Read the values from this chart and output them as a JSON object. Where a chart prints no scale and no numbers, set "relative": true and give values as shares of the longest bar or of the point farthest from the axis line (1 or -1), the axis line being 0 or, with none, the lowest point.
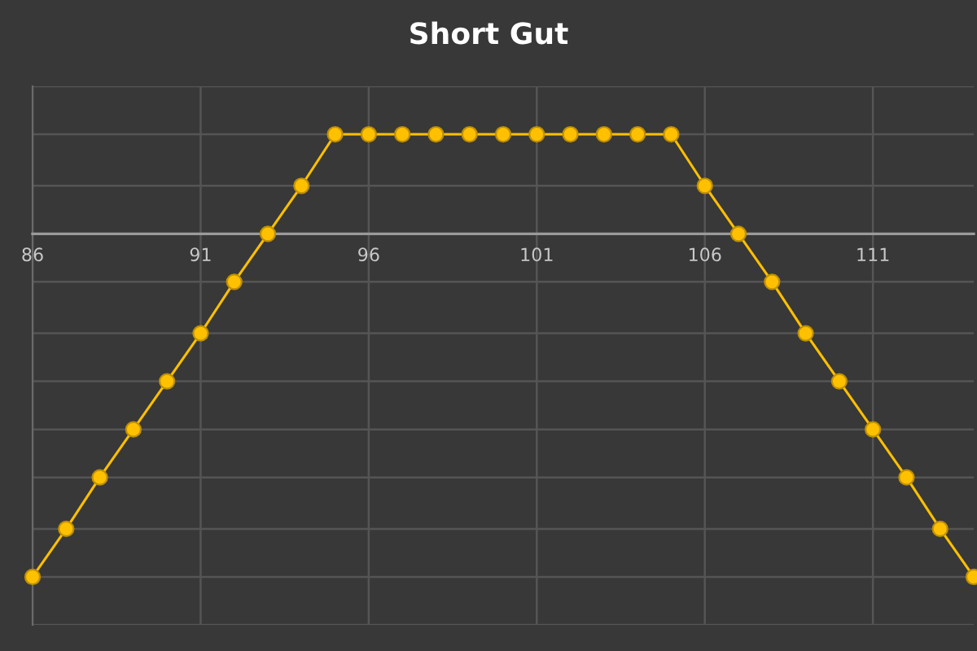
{
  "chart_data": {
    "type": "line",
    "title": "Short Gut",
    "x": [
      86,
      87,
      88,
      89,
      90,
      91,
      92,
      93,
      94,
      95,
      96,
      97,
      98,
      99,
      100,
      101,
      102,
      103,
      104,
      105,
      106,
      107,
      108,
      109,
      110,
      111,
      112,
      113,
      114
    ],
    "values": [
      -1,
      -0.86,
      -0.71,
      -0.57,
      -0.43,
      -0.29,
      -0.14,
      0,
      0.14,
      0.29,
      0.29,
      0.29,
      0.29,
      0.29,
      0.29,
      0.29,
      0.29,
      0.29,
      0.29,
      0.29,
      0.14,
      0,
      -0.14,
      -0.29,
      -0.43,
      -0.57,
      -0.71,
      -0.86,
      -1
    ],
    "color": "#ffc000",
    "relative": true,
    "xlim": [
      86,
      114
    ],
    "xticks": [
      86,
      91,
      96,
      101,
      106,
      111
    ],
    "grid": true,
    "marker": "circle",
    "line_style": "solid",
    "tick_labels": "x"
  }
}
